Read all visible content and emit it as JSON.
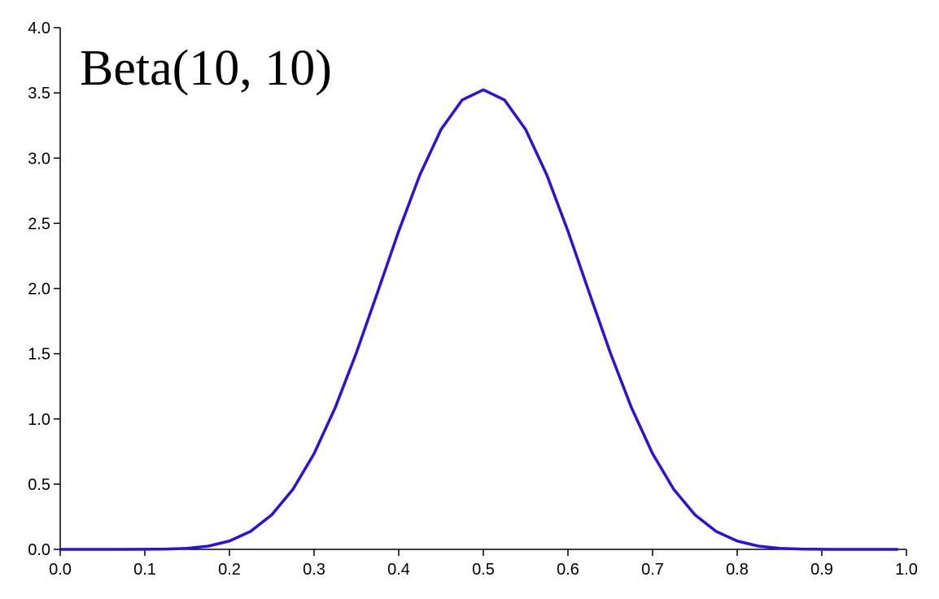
{
  "chart_data": {
    "type": "line",
    "title": "Beta(10, 10)",
    "x": [
      0,
      0.025,
      0.05,
      0.075,
      0.1,
      0.125,
      0.15,
      0.175,
      0.2,
      0.225,
      0.25,
      0.275,
      0.3,
      0.325,
      0.35,
      0.375,
      0.4,
      0.425,
      0.45,
      0.475,
      0.5,
      0.525,
      0.55,
      0.575,
      0.6,
      0.625,
      0.65,
      0.675,
      0.7,
      0.725,
      0.75,
      0.775,
      0.8,
      0.825,
      0.85,
      0.875,
      0.9,
      0.925,
      0.95,
      0.975,
      0.99
    ],
    "series": [
      {
        "color": "#2a0fe6",
        "values": [
          0,
          0,
          0,
          0,
          0.0004,
          0.002,
          0.008,
          0.025,
          0.064,
          0.138,
          0.265,
          0.46,
          0.734,
          1.087,
          1.508,
          1.971,
          2.44,
          2.871,
          3.219,
          3.446,
          3.524,
          3.446,
          3.219,
          2.871,
          2.44,
          1.971,
          1.508,
          1.087,
          0.734,
          0.46,
          0.265,
          0.138,
          0.064,
          0.025,
          0.008,
          0.002,
          0.0004,
          0,
          0,
          0,
          0
        ]
      }
    ],
    "xlim": [
      0,
      1
    ],
    "xticks": [
      {
        "value": 0,
        "label": "0.0"
      },
      0.1,
      0.2,
      0.3,
      0.4,
      0.5,
      0.6,
      0.7,
      0.8,
      0.9,
      {
        "value": 1,
        "label": "1.0"
      }
    ],
    "ylim": [
      0,
      4
    ],
    "yticks": [
      {
        "value": 0,
        "label": "0.0"
      },
      0.5,
      {
        "value": 1,
        "label": "1.0"
      },
      1.5,
      {
        "value": 2,
        "label": "2.0"
      },
      2.5,
      {
        "value": 3,
        "label": "3.0"
      },
      3.5,
      {
        "value": 4,
        "label": "4.0"
      }
    ]
  }
}
